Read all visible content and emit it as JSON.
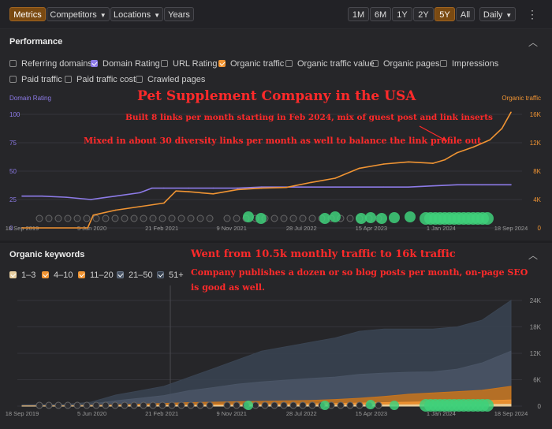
{
  "toolbar": {
    "metrics": "Metrics",
    "competitors": "Competitors",
    "locations": "Locations",
    "years": "Years",
    "ranges": [
      "1M",
      "6M",
      "1Y",
      "2Y",
      "5Y",
      "All"
    ],
    "selected_range": "5Y",
    "interval": "Daily"
  },
  "performance": {
    "title": "Performance",
    "checkboxes": [
      {
        "label": "Referring domains",
        "checked": false,
        "color": ""
      },
      {
        "label": "Domain Rating",
        "checked": true,
        "color": "#8d7be8"
      },
      {
        "label": "URL Rating",
        "checked": false,
        "color": ""
      },
      {
        "label": "Organic traffic",
        "checked": true,
        "color": "#f09433"
      },
      {
        "label": "Organic traffic value",
        "checked": false,
        "color": ""
      },
      {
        "label": "Organic pages",
        "checked": false,
        "color": ""
      },
      {
        "label": "Impressions",
        "checked": false,
        "color": ""
      },
      {
        "label": "Paid traffic",
        "checked": false,
        "color": ""
      },
      {
        "label": "Paid traffic cost",
        "checked": false,
        "color": ""
      },
      {
        "label": "Crawled pages",
        "checked": false,
        "color": ""
      }
    ],
    "left_axis_label": "Domain Rating",
    "right_axis_label": "Organic traffic"
  },
  "keywords": {
    "title": "Organic keywords",
    "checkboxes": [
      {
        "label": "1–3",
        "checked": true,
        "color": "#e8cfa0"
      },
      {
        "label": "4–10",
        "checked": true,
        "color": "#f09433"
      },
      {
        "label": "11–20",
        "checked": true,
        "color": "#c8741c"
      },
      {
        "label": "21–50",
        "checked": true,
        "color": "#4a5566"
      },
      {
        "label": "51+",
        "checked": true,
        "color": "#36404e"
      }
    ]
  },
  "annotations": {
    "title": "Pet Supplement Company in the USA",
    "line1": "Built 8 links per month starting in Feb 2024, mix of guest post and link inserts",
    "line2": "Mixed in about 30 diversity links per month as well to balance the link profile out",
    "line3": "Went from 10.5k monthly traffic to 16k traffic",
    "line4a": "Company publishes a dozen or so blog posts per month, on-page SEO",
    "line4b": "is good as well."
  },
  "chart_data": [
    {
      "type": "line",
      "xlabel": "",
      "ylabel_left": "Domain Rating",
      "ylabel_right": "Organic traffic",
      "x_ticks": [
        "18 Sep 2019",
        "5 Jun 2020",
        "21 Feb 2021",
        "9 Nov 2021",
        "28 Jul 2022",
        "15 Apr 2023",
        "1 Jan 2024",
        "18 Sep 2024"
      ],
      "y_left_ticks": [
        "0",
        "25",
        "50",
        "75",
        "100"
      ],
      "y_right_ticks": [
        "0",
        "4K",
        "8K",
        "12K",
        "16K"
      ],
      "ylim_left": [
        0,
        100
      ],
      "ylim_right": [
        0,
        16000
      ],
      "series": [
        {
          "name": "Domain Rating",
          "axis": "left",
          "color": "#8d7be8",
          "x": [
            "2019-09-18",
            "2019-12-01",
            "2020-03-01",
            "2020-06-01",
            "2020-09-01",
            "2020-12-01",
            "2021-01-15",
            "2021-03-01",
            "2021-06-01",
            "2021-09-01",
            "2021-12-01",
            "2022-03-01",
            "2022-06-01",
            "2022-09-01",
            "2022-12-01",
            "2023-03-01",
            "2023-06-01",
            "2023-09-01",
            "2023-12-01",
            "2024-03-01",
            "2024-06-01",
            "2024-09-18"
          ],
          "y": [
            28,
            28,
            27,
            25,
            28,
            31,
            35,
            35,
            35,
            35,
            35,
            36,
            36,
            36,
            36,
            36,
            36,
            36,
            37,
            38,
            38,
            38
          ]
        },
        {
          "name": "Organic traffic",
          "axis": "right",
          "color": "#f09433",
          "x": [
            "2019-09-18",
            "2020-05-20",
            "2020-06-10",
            "2020-09-01",
            "2020-12-01",
            "2021-03-01",
            "2021-04-15",
            "2021-06-01",
            "2021-09-01",
            "2021-12-01",
            "2022-03-01",
            "2022-06-01",
            "2022-09-01",
            "2022-12-01",
            "2023-03-01",
            "2023-06-01",
            "2023-09-01",
            "2023-12-01",
            "2024-01-15",
            "2024-03-01",
            "2024-05-01",
            "2024-07-01",
            "2024-08-15",
            "2024-09-18"
          ],
          "y": [
            0,
            0,
            1800,
            2500,
            3000,
            3500,
            5200,
            5100,
            4800,
            5400,
            5600,
            5700,
            6400,
            7000,
            8400,
            9000,
            9300,
            9100,
            9600,
            10600,
            11400,
            12400,
            14000,
            16300
          ]
        }
      ]
    },
    {
      "type": "area",
      "xlabel": "",
      "ylabel": "",
      "x_ticks": [
        "18 Sep 2019",
        "5 Jun 2020",
        "21 Feb 2021",
        "9 Nov 2021",
        "28 Jul 2022",
        "15 Apr 2023",
        "1 Jan 2024",
        "18 Sep 2024"
      ],
      "y_ticks": [
        "0",
        "6K",
        "12K",
        "18K",
        "24K"
      ],
      "ylim": [
        0,
        24000
      ],
      "x": [
        "2019-09-18",
        "2020-03-01",
        "2020-06-01",
        "2020-09-01",
        "2020-12-01",
        "2021-03-01",
        "2021-06-01",
        "2021-09-01",
        "2021-12-01",
        "2022-03-01",
        "2022-06-01",
        "2022-09-01",
        "2022-12-01",
        "2023-03-01",
        "2023-06-01",
        "2023-09-01",
        "2023-12-01",
        "2024-03-01",
        "2024-06-01",
        "2024-09-18"
      ],
      "series": [
        {
          "name": "51+",
          "color": "#3a4452",
          "values": [
            300,
            400,
            900,
            2500,
            3500,
            4500,
            6500,
            8500,
            10500,
            12500,
            13500,
            14500,
            15500,
            17000,
            17500,
            17500,
            17500,
            18000,
            19500,
            24000
          ]
        },
        {
          "name": "21–50",
          "color": "#4a5566",
          "values": [
            200,
            300,
            500,
            1200,
            1800,
            2400,
            3500,
            4200,
            5000,
            5500,
            5900,
            6300,
            6600,
            7200,
            7500,
            7700,
            7800,
            8400,
            9800,
            12500
          ]
        },
        {
          "name": "11–20",
          "color": "#c8741c",
          "values": [
            50,
            80,
            150,
            300,
            450,
            600,
            800,
            900,
            1000,
            1100,
            1200,
            1300,
            1500,
            1800,
            2200,
            2700,
            3000,
            3300,
            3600,
            4500
          ]
        },
        {
          "name": "4–10",
          "color": "#f09433",
          "values": [
            20,
            30,
            60,
            120,
            180,
            240,
            320,
            360,
            400,
            440,
            480,
            520,
            600,
            700,
            800,
            900,
            1000,
            1100,
            1200,
            1400
          ]
        },
        {
          "name": "1–3",
          "color": "#e8cfa0",
          "values": [
            10,
            10,
            20,
            40,
            60,
            80,
            100,
            120,
            140,
            150,
            160,
            170,
            200,
            230,
            260,
            300,
            330,
            360,
            380,
            420
          ]
        }
      ]
    }
  ]
}
